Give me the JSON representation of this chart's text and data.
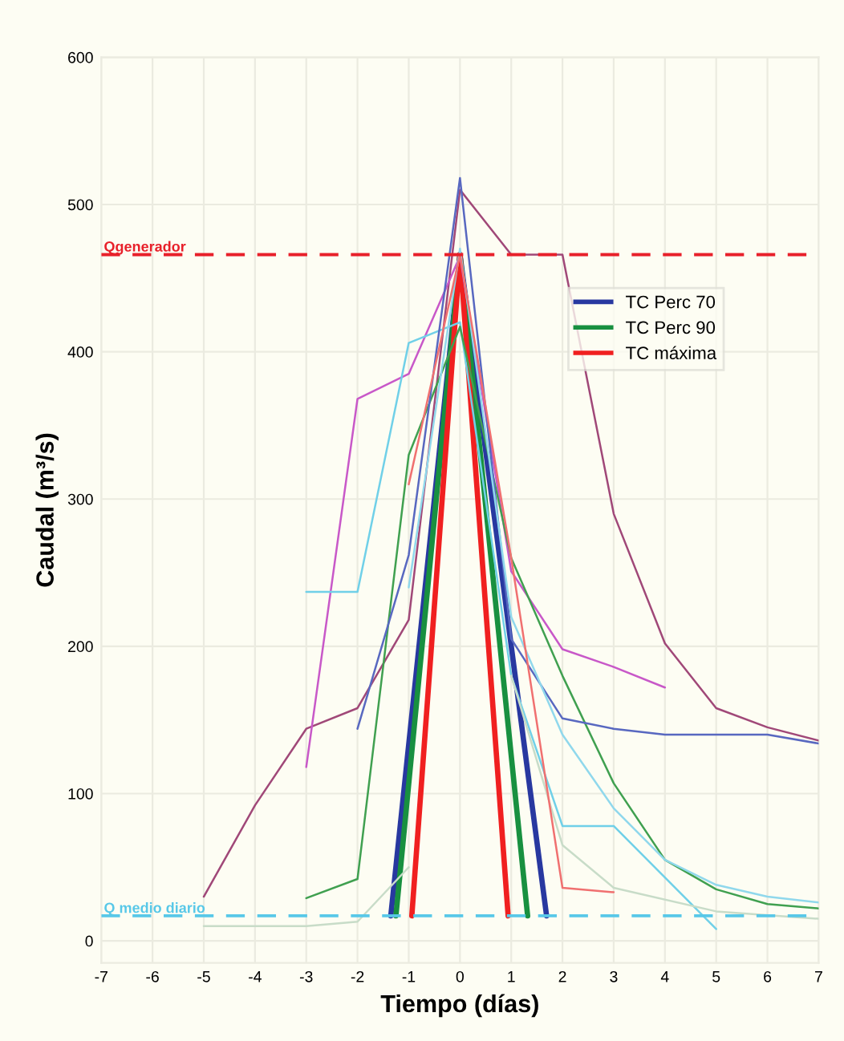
{
  "chart_data": {
    "type": "line",
    "xlabel": "Tiempo (días)",
    "ylabel": "Caudal (m³/s)",
    "xlim": [
      -7,
      7
    ],
    "xticks": [
      -7,
      -6,
      -5,
      -4,
      -3,
      -2,
      -1,
      0,
      1,
      2,
      3,
      4,
      5,
      6,
      7
    ],
    "ylim": [
      -15,
      600
    ],
    "yticks": [
      0,
      100,
      200,
      300,
      400,
      500,
      600
    ],
    "grid": true,
    "legend": "top right",
    "line_style": "solid",
    "marker": "none",
    "ref_lines": [
      {
        "axis": "y",
        "value": 466,
        "label": "Qgenerador",
        "color": "#e8202a",
        "line_style": "dashed"
      },
      {
        "axis": "y",
        "value": 17,
        "label": "Q medio diario",
        "color": "#58c8e8",
        "line_style": "dashed"
      }
    ],
    "series": [
      {
        "color": "#a04878",
        "x": [
          -5,
          -4,
          -3,
          -2,
          -1,
          0,
          1,
          2,
          3,
          4,
          5,
          6,
          7
        ],
        "values": [
          30,
          92,
          144,
          158,
          218,
          510,
          466,
          466,
          290,
          202,
          158,
          145,
          136
        ]
      },
      {
        "color": "#c858c8",
        "x": [
          -3,
          -2,
          -1,
          0,
          1,
          2,
          3,
          4
        ],
        "values": [
          118,
          368,
          385,
          465,
          251,
          198,
          186,
          172
        ]
      },
      {
        "color": "#70d0e8",
        "x": [
          -3,
          -2,
          -1,
          0,
          1,
          2,
          3,
          5
        ],
        "values": [
          237,
          237,
          406,
          420,
          180,
          78,
          78,
          8
        ]
      },
      {
        "color": "#40a050",
        "x": [
          -3,
          -2,
          -1,
          0,
          1,
          2,
          3,
          4,
          5,
          6,
          7
        ],
        "values": [
          29,
          42,
          330,
          417,
          260,
          180,
          107,
          55,
          35,
          25,
          22
        ]
      },
      {
        "color": "#5868c0",
        "x": [
          -2,
          -1,
          0,
          1,
          2,
          3,
          4,
          5,
          6,
          7
        ],
        "values": [
          144,
          262,
          518,
          205,
          151,
          144,
          140,
          140,
          140,
          134
        ]
      },
      {
        "color": "#c8dcc8",
        "x": [
          -5,
          -3,
          -2,
          -1,
          0,
          1,
          2,
          3,
          5,
          7
        ],
        "values": [
          10,
          10,
          13,
          50,
          null,
          180,
          65,
          36,
          20,
          15
        ]
      },
      {
        "color": "#90d8ec",
        "x": [
          -1,
          0,
          1,
          2,
          3,
          4,
          5,
          6,
          7
        ],
        "values": [
          240,
          470,
          220,
          140,
          90,
          55,
          38,
          30,
          26
        ]
      },
      {
        "color": "#f07070",
        "x": [
          -1,
          0,
          1,
          2,
          3
        ],
        "values": [
          310,
          466,
          260,
          36,
          33
        ]
      },
      {
        "name": "TC Perc 70",
        "color": "#2838a0",
        "x": [
          -1.35,
          0,
          1.69
        ],
        "values": [
          17,
          466,
          17
        ]
      },
      {
        "name": "TC Perc 90",
        "color": "#189040",
        "x": [
          -1.25,
          0,
          1.32
        ],
        "values": [
          17,
          466,
          17
        ]
      },
      {
        "name": "TC máxima",
        "color": "#f02020",
        "x": [
          -0.94,
          0,
          0.94
        ],
        "values": [
          17,
          466,
          17
        ]
      }
    ]
  }
}
